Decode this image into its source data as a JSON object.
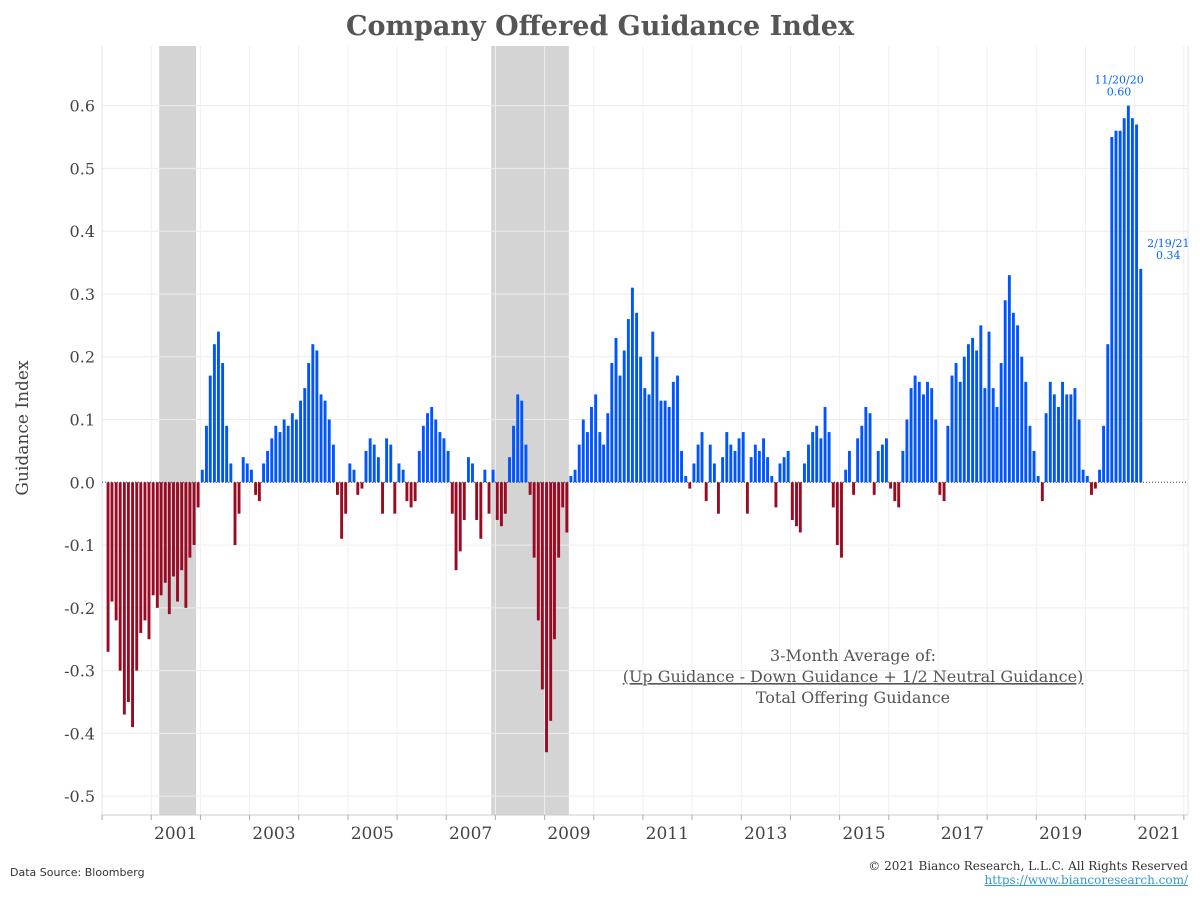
{
  "footer": {
    "source": "Data Source: Bloomberg",
    "copyright": "© 2021 Bianco Research, L.L.C. All Rights Reserved",
    "url": "https://www.biancoresearch.com/"
  },
  "colors": {
    "positive": "#0055ff",
    "negative": "#9b0a23",
    "recession": "#d4d4d4",
    "annotation": "#0066ff"
  },
  "chart_data": {
    "type": "bar",
    "title": "Company Offered Guidance Index",
    "ylabel": "Guidance Index",
    "xlabel": "",
    "ylim": [
      -0.53,
      0.695
    ],
    "xlim": [
      "2000-01-01",
      "2022-02-01"
    ],
    "grid": true,
    "y_ticks": [
      0.6,
      0.5,
      0.4,
      0.3,
      0.2,
      0.1,
      0.0,
      -0.1,
      -0.2,
      -0.3,
      -0.4,
      -0.5
    ],
    "y_tick_labels": [
      "0.6",
      "0.5",
      "0.4",
      "0.3",
      "0.2",
      "0.1",
      "0.0",
      "-0.1",
      "-0.2",
      "-0.3",
      "-0.4",
      "-0.5"
    ],
    "x_tick_labels": [
      "2001",
      "2003",
      "2005",
      "2007",
      "2009",
      "2011",
      "2013",
      "2015",
      "2017",
      "2019",
      "2021"
    ],
    "recessions": [
      {
        "start": "2001-03-01",
        "end": "2001-11-30"
      },
      {
        "start": "2007-12-01",
        "end": "2009-06-30"
      }
    ],
    "annotations": [
      {
        "date": "2020-11-20",
        "value": 0.6,
        "lines": [
          "11/20/20",
          "0.60"
        ]
      },
      {
        "date": "2021-02-19",
        "value": 0.34,
        "lines": [
          "2/19/21",
          "0.34"
        ]
      }
    ],
    "formula": {
      "line1": "3-Month Average of:",
      "line2": "(Up Guidance - Down Guidance + 1/2 Neutral Guidance)",
      "line3": "Total Offering Guidance"
    },
    "series": [
      {
        "points": [
          [
            "2000-02-15",
            -0.27
          ],
          [
            "2000-03-15",
            -0.19
          ],
          [
            "2000-04-15",
            -0.22
          ],
          [
            "2000-05-15",
            -0.3
          ],
          [
            "2000-06-15",
            -0.37
          ],
          [
            "2000-07-15",
            -0.35
          ],
          [
            "2000-08-15",
            -0.39
          ],
          [
            "2000-09-15",
            -0.3
          ],
          [
            "2000-10-15",
            -0.24
          ],
          [
            "2000-11-15",
            -0.22
          ],
          [
            "2000-12-15",
            -0.25
          ],
          [
            "2001-01-15",
            -0.18
          ],
          [
            "2001-02-15",
            -0.2
          ],
          [
            "2001-03-15",
            -0.18
          ],
          [
            "2001-04-15",
            -0.16
          ],
          [
            "2001-05-15",
            -0.21
          ],
          [
            "2001-06-15",
            -0.15
          ],
          [
            "2001-07-15",
            -0.19
          ],
          [
            "2001-08-15",
            -0.14
          ],
          [
            "2001-09-15",
            -0.2
          ],
          [
            "2001-10-15",
            -0.12
          ],
          [
            "2001-11-15",
            -0.1
          ],
          [
            "2001-12-15",
            -0.04
          ],
          [
            "2002-01-15",
            0.02
          ],
          [
            "2002-02-15",
            0.09
          ],
          [
            "2002-03-15",
            0.17
          ],
          [
            "2002-04-15",
            0.22
          ],
          [
            "2002-05-15",
            0.24
          ],
          [
            "2002-06-15",
            0.19
          ],
          [
            "2002-07-15",
            0.09
          ],
          [
            "2002-08-15",
            0.03
          ],
          [
            "2002-09-15",
            -0.1
          ],
          [
            "2002-10-15",
            -0.05
          ],
          [
            "2002-11-15",
            0.04
          ],
          [
            "2002-12-15",
            0.03
          ],
          [
            "2003-01-15",
            0.02
          ],
          [
            "2003-02-15",
            -0.02
          ],
          [
            "2003-03-15",
            -0.03
          ],
          [
            "2003-04-15",
            0.03
          ],
          [
            "2003-05-15",
            0.05
          ],
          [
            "2003-06-15",
            0.07
          ],
          [
            "2003-07-15",
            0.09
          ],
          [
            "2003-08-15",
            0.08
          ],
          [
            "2003-09-15",
            0.1
          ],
          [
            "2003-10-15",
            0.09
          ],
          [
            "2003-11-15",
            0.11
          ],
          [
            "2003-12-15",
            0.1
          ],
          [
            "2004-01-15",
            0.13
          ],
          [
            "2004-02-15",
            0.15
          ],
          [
            "2004-03-15",
            0.19
          ],
          [
            "2004-04-15",
            0.22
          ],
          [
            "2004-05-15",
            0.21
          ],
          [
            "2004-06-15",
            0.14
          ],
          [
            "2004-07-15",
            0.13
          ],
          [
            "2004-08-15",
            0.1
          ],
          [
            "2004-09-15",
            0.06
          ],
          [
            "2004-10-15",
            -0.02
          ],
          [
            "2004-11-15",
            -0.09
          ],
          [
            "2004-12-15",
            -0.05
          ],
          [
            "2005-01-15",
            0.03
          ],
          [
            "2005-02-15",
            0.02
          ],
          [
            "2005-03-15",
            -0.02
          ],
          [
            "2005-04-15",
            -0.01
          ],
          [
            "2005-05-15",
            0.05
          ],
          [
            "2005-06-15",
            0.07
          ],
          [
            "2005-07-15",
            0.06
          ],
          [
            "2005-08-15",
            0.04
          ],
          [
            "2005-09-15",
            -0.05
          ],
          [
            "2005-10-15",
            0.07
          ],
          [
            "2005-11-15",
            0.06
          ],
          [
            "2005-12-15",
            -0.05
          ],
          [
            "2006-01-15",
            0.03
          ],
          [
            "2006-02-15",
            0.02
          ],
          [
            "2006-03-15",
            -0.03
          ],
          [
            "2006-04-15",
            -0.04
          ],
          [
            "2006-05-15",
            -0.03
          ],
          [
            "2006-06-15",
            0.05
          ],
          [
            "2006-07-15",
            0.09
          ],
          [
            "2006-08-15",
            0.11
          ],
          [
            "2006-09-15",
            0.12
          ],
          [
            "2006-10-15",
            0.1
          ],
          [
            "2006-11-15",
            0.08
          ],
          [
            "2006-12-15",
            0.07
          ],
          [
            "2007-01-15",
            0.05
          ],
          [
            "2007-02-15",
            -0.05
          ],
          [
            "2007-03-15",
            -0.14
          ],
          [
            "2007-04-15",
            -0.11
          ],
          [
            "2007-05-15",
            -0.06
          ],
          [
            "2007-06-15",
            0.04
          ],
          [
            "2007-07-15",
            0.03
          ],
          [
            "2007-08-15",
            -0.06
          ],
          [
            "2007-09-15",
            -0.09
          ],
          [
            "2007-10-15",
            0.02
          ],
          [
            "2007-11-15",
            -0.05
          ],
          [
            "2007-12-15",
            0.02
          ],
          [
            "2008-01-15",
            -0.06
          ],
          [
            "2008-02-15",
            -0.07
          ],
          [
            "2008-03-15",
            -0.05
          ],
          [
            "2008-04-15",
            0.04
          ],
          [
            "2008-05-15",
            0.09
          ],
          [
            "2008-06-15",
            0.14
          ],
          [
            "2008-07-15",
            0.13
          ],
          [
            "2008-08-15",
            0.06
          ],
          [
            "2008-09-15",
            -0.02
          ],
          [
            "2008-10-15",
            -0.12
          ],
          [
            "2008-11-15",
            -0.22
          ],
          [
            "2008-12-15",
            -0.33
          ],
          [
            "2009-01-15",
            -0.43
          ],
          [
            "2009-02-15",
            -0.38
          ],
          [
            "2009-03-15",
            -0.25
          ],
          [
            "2009-04-15",
            -0.12
          ],
          [
            "2009-05-15",
            -0.04
          ],
          [
            "2009-06-15",
            -0.08
          ],
          [
            "2009-07-15",
            0.01
          ],
          [
            "2009-08-15",
            0.02
          ],
          [
            "2009-09-15",
            0.06
          ],
          [
            "2009-10-15",
            0.1
          ],
          [
            "2009-11-15",
            0.08
          ],
          [
            "2009-12-15",
            0.12
          ],
          [
            "2010-01-15",
            0.14
          ],
          [
            "2010-02-15",
            0.08
          ],
          [
            "2010-03-15",
            0.06
          ],
          [
            "2010-04-15",
            0.11
          ],
          [
            "2010-05-15",
            0.19
          ],
          [
            "2010-06-15",
            0.23
          ],
          [
            "2010-07-15",
            0.17
          ],
          [
            "2010-08-15",
            0.21
          ],
          [
            "2010-09-15",
            0.26
          ],
          [
            "2010-10-15",
            0.31
          ],
          [
            "2010-11-15",
            0.27
          ],
          [
            "2010-12-15",
            0.2
          ],
          [
            "2011-01-15",
            0.15
          ],
          [
            "2011-02-15",
            0.14
          ],
          [
            "2011-03-15",
            0.24
          ],
          [
            "2011-04-15",
            0.2
          ],
          [
            "2011-05-15",
            0.13
          ],
          [
            "2011-06-15",
            0.13
          ],
          [
            "2011-07-15",
            0.12
          ],
          [
            "2011-08-15",
            0.16
          ],
          [
            "2011-09-15",
            0.17
          ],
          [
            "2011-10-15",
            0.05
          ],
          [
            "2011-11-15",
            0.01
          ],
          [
            "2011-12-15",
            -0.01
          ],
          [
            "2012-01-15",
            0.03
          ],
          [
            "2012-02-15",
            0.06
          ],
          [
            "2012-03-15",
            0.08
          ],
          [
            "2012-04-15",
            -0.03
          ],
          [
            "2012-05-15",
            0.06
          ],
          [
            "2012-06-15",
            0.03
          ],
          [
            "2012-07-15",
            -0.05
          ],
          [
            "2012-08-15",
            0.04
          ],
          [
            "2012-09-15",
            0.08
          ],
          [
            "2012-10-15",
            0.06
          ],
          [
            "2012-11-15",
            0.05
          ],
          [
            "2012-12-15",
            0.07
          ],
          [
            "2013-01-15",
            0.08
          ],
          [
            "2013-02-15",
            -0.05
          ],
          [
            "2013-03-15",
            0.04
          ],
          [
            "2013-04-15",
            0.06
          ],
          [
            "2013-05-15",
            0.05
          ],
          [
            "2013-06-15",
            0.07
          ],
          [
            "2013-07-15",
            0.04
          ],
          [
            "2013-08-15",
            0.01
          ],
          [
            "2013-09-15",
            -0.04
          ],
          [
            "2013-10-15",
            0.03
          ],
          [
            "2013-11-15",
            0.04
          ],
          [
            "2013-12-15",
            0.05
          ],
          [
            "2014-01-15",
            -0.06
          ],
          [
            "2014-02-15",
            -0.07
          ],
          [
            "2014-03-15",
            -0.08
          ],
          [
            "2014-04-15",
            0.03
          ],
          [
            "2014-05-15",
            0.06
          ],
          [
            "2014-06-15",
            0.08
          ],
          [
            "2014-07-15",
            0.09
          ],
          [
            "2014-08-15",
            0.07
          ],
          [
            "2014-09-15",
            0.12
          ],
          [
            "2014-10-15",
            0.08
          ],
          [
            "2014-11-15",
            -0.04
          ],
          [
            "2014-12-15",
            -0.1
          ],
          [
            "2015-01-15",
            -0.12
          ],
          [
            "2015-02-15",
            0.02
          ],
          [
            "2015-03-15",
            0.05
          ],
          [
            "2015-04-15",
            -0.02
          ],
          [
            "2015-05-15",
            0.07
          ],
          [
            "2015-06-15",
            0.09
          ],
          [
            "2015-07-15",
            0.12
          ],
          [
            "2015-08-15",
            0.11
          ],
          [
            "2015-09-15",
            -0.02
          ],
          [
            "2015-10-15",
            0.05
          ],
          [
            "2015-11-15",
            0.06
          ],
          [
            "2015-12-15",
            0.07
          ],
          [
            "2016-01-15",
            -0.01
          ],
          [
            "2016-02-15",
            -0.03
          ],
          [
            "2016-03-15",
            -0.04
          ],
          [
            "2016-04-15",
            0.05
          ],
          [
            "2016-05-15",
            0.1
          ],
          [
            "2016-06-15",
            0.15
          ],
          [
            "2016-07-15",
            0.17
          ],
          [
            "2016-08-15",
            0.16
          ],
          [
            "2016-09-15",
            0.14
          ],
          [
            "2016-10-15",
            0.16
          ],
          [
            "2016-11-15",
            0.15
          ],
          [
            "2016-12-15",
            0.1
          ],
          [
            "2017-01-15",
            -0.02
          ],
          [
            "2017-02-15",
            -0.03
          ],
          [
            "2017-03-15",
            0.09
          ],
          [
            "2017-04-15",
            0.17
          ],
          [
            "2017-05-15",
            0.19
          ],
          [
            "2017-06-15",
            0.16
          ],
          [
            "2017-07-15",
            0.2
          ],
          [
            "2017-08-15",
            0.22
          ],
          [
            "2017-09-15",
            0.23
          ],
          [
            "2017-10-15",
            0.21
          ],
          [
            "2017-11-15",
            0.25
          ],
          [
            "2017-12-15",
            0.15
          ],
          [
            "2018-01-15",
            0.24
          ],
          [
            "2018-02-15",
            0.15
          ],
          [
            "2018-03-15",
            0.12
          ],
          [
            "2018-04-15",
            0.19
          ],
          [
            "2018-05-15",
            0.29
          ],
          [
            "2018-06-15",
            0.33
          ],
          [
            "2018-07-15",
            0.27
          ],
          [
            "2018-08-15",
            0.25
          ],
          [
            "2018-09-15",
            0.2
          ],
          [
            "2018-10-15",
            0.16
          ],
          [
            "2018-11-15",
            0.09
          ],
          [
            "2018-12-15",
            0.05
          ],
          [
            "2019-01-15",
            0.01
          ],
          [
            "2019-02-15",
            -0.03
          ],
          [
            "2019-03-15",
            0.11
          ],
          [
            "2019-04-15",
            0.16
          ],
          [
            "2019-05-15",
            0.14
          ],
          [
            "2019-06-15",
            0.12
          ],
          [
            "2019-07-15",
            0.16
          ],
          [
            "2019-08-15",
            0.14
          ],
          [
            "2019-09-15",
            0.14
          ],
          [
            "2019-10-15",
            0.15
          ],
          [
            "2019-11-15",
            0.1
          ],
          [
            "2019-12-15",
            0.02
          ],
          [
            "2020-01-15",
            0.01
          ],
          [
            "2020-02-15",
            -0.02
          ],
          [
            "2020-03-15",
            -0.01
          ],
          [
            "2020-04-15",
            0.02
          ],
          [
            "2020-05-15",
            0.09
          ],
          [
            "2020-06-15",
            0.22
          ],
          [
            "2020-07-15",
            0.55
          ],
          [
            "2020-08-15",
            0.56
          ],
          [
            "2020-09-15",
            0.56
          ],
          [
            "2020-10-15",
            0.58
          ],
          [
            "2020-11-15",
            0.6
          ],
          [
            "2020-12-15",
            0.58
          ],
          [
            "2021-01-15",
            0.57
          ],
          [
            "2021-02-15",
            0.34
          ]
        ]
      }
    ]
  }
}
